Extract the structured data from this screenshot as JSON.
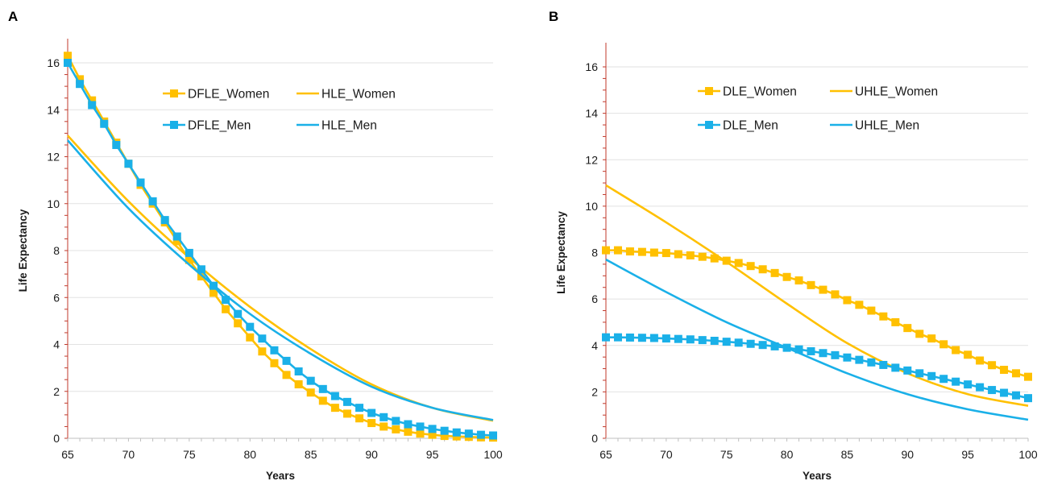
{
  "chart_data": [
    {
      "panel_label": "A",
      "type": "line",
      "xlabel": "Years",
      "ylabel": "Life Expectancy",
      "xlim": [
        65,
        100
      ],
      "ylim": [
        0,
        16
      ],
      "x_ticks": [
        "65",
        "70",
        "75",
        "80",
        "85",
        "90",
        "95",
        "100"
      ],
      "y_ticks": [
        "0",
        "2",
        "4",
        "6",
        "8",
        "10",
        "12",
        "14",
        "16"
      ],
      "grid": "horizontal",
      "legend_position": "top-center",
      "series": [
        {
          "name": "DFLE_Women",
          "color": "#ffc000",
          "marker": "square",
          "x": [
            65,
            66,
            67,
            68,
            69,
            70,
            71,
            72,
            73,
            74,
            75,
            76,
            77,
            78,
            79,
            80,
            81,
            82,
            83,
            84,
            85,
            86,
            87,
            88,
            89,
            90,
            91,
            92,
            93,
            94,
            95,
            96,
            97,
            98,
            99,
            100
          ],
          "y": [
            16.3,
            15.3,
            14.4,
            13.5,
            12.6,
            11.7,
            10.8,
            10.0,
            9.2,
            8.4,
            7.6,
            6.9,
            6.2,
            5.5,
            4.9,
            4.3,
            3.7,
            3.2,
            2.7,
            2.3,
            1.95,
            1.6,
            1.3,
            1.05,
            0.85,
            0.65,
            0.5,
            0.38,
            0.28,
            0.2,
            0.15,
            0.1,
            0.08,
            0.06,
            0.04,
            0.03
          ]
        },
        {
          "name": "HLE_Women",
          "color": "#ffc000",
          "marker": "none",
          "x": [
            65,
            70,
            75,
            80,
            85,
            90,
            95,
            100
          ],
          "y": [
            12.9,
            10.1,
            7.7,
            5.6,
            3.8,
            2.3,
            1.3,
            0.75
          ]
        },
        {
          "name": "DFLE_Men",
          "color": "#1ab0e8",
          "marker": "square",
          "x": [
            65,
            66,
            67,
            68,
            69,
            70,
            71,
            72,
            73,
            74,
            75,
            76,
            77,
            78,
            79,
            80,
            81,
            82,
            83,
            84,
            85,
            86,
            87,
            88,
            89,
            90,
            91,
            92,
            93,
            94,
            95,
            96,
            97,
            98,
            99,
            100
          ],
          "y": [
            16.0,
            15.1,
            14.2,
            13.4,
            12.5,
            11.7,
            10.9,
            10.1,
            9.3,
            8.6,
            7.9,
            7.2,
            6.5,
            5.9,
            5.3,
            4.75,
            4.25,
            3.75,
            3.3,
            2.85,
            2.45,
            2.1,
            1.8,
            1.55,
            1.3,
            1.08,
            0.9,
            0.74,
            0.6,
            0.5,
            0.4,
            0.32,
            0.25,
            0.2,
            0.15,
            0.12
          ]
        },
        {
          "name": "HLE_Men",
          "color": "#1ab0e8",
          "marker": "none",
          "x": [
            65,
            70,
            75,
            80,
            85,
            90,
            95,
            100
          ],
          "y": [
            12.7,
            9.8,
            7.4,
            5.3,
            3.6,
            2.2,
            1.3,
            0.78
          ]
        }
      ]
    },
    {
      "panel_label": "B",
      "type": "line",
      "xlabel": "Years",
      "ylabel": "Life Expectancy",
      "xlim": [
        65,
        100
      ],
      "ylim": [
        0,
        16
      ],
      "x_ticks": [
        "65",
        "70",
        "75",
        "80",
        "85",
        "90",
        "95",
        "100"
      ],
      "y_ticks": [
        "0",
        "2",
        "4",
        "6",
        "8",
        "10",
        "12",
        "14",
        "16"
      ],
      "grid": "horizontal",
      "legend_position": "top-center",
      "series": [
        {
          "name": "DLE_Women",
          "color": "#ffc000",
          "marker": "square",
          "x": [
            65,
            66,
            67,
            68,
            69,
            70,
            71,
            72,
            73,
            74,
            75,
            76,
            77,
            78,
            79,
            80,
            81,
            82,
            83,
            84,
            85,
            86,
            87,
            88,
            89,
            90,
            91,
            92,
            93,
            94,
            95,
            96,
            97,
            98,
            99,
            100
          ],
          "y": [
            8.1,
            8.1,
            8.05,
            8.03,
            8.0,
            7.98,
            7.93,
            7.88,
            7.82,
            7.75,
            7.65,
            7.55,
            7.42,
            7.28,
            7.12,
            6.95,
            6.8,
            6.6,
            6.4,
            6.2,
            5.95,
            5.75,
            5.5,
            5.25,
            5.0,
            4.75,
            4.5,
            4.3,
            4.05,
            3.8,
            3.6,
            3.35,
            3.15,
            2.95,
            2.8,
            2.65
          ]
        },
        {
          "name": "UHLE_Women",
          "color": "#ffc000",
          "marker": "none",
          "x": [
            65,
            70,
            75,
            80,
            85,
            90,
            95,
            100
          ],
          "y": [
            10.9,
            9.3,
            7.6,
            5.8,
            4.1,
            2.8,
            1.9,
            1.4
          ]
        },
        {
          "name": "DLE_Men",
          "color": "#1ab0e8",
          "marker": "square",
          "x": [
            65,
            66,
            67,
            68,
            69,
            70,
            71,
            72,
            73,
            74,
            75,
            76,
            77,
            78,
            79,
            80,
            81,
            82,
            83,
            84,
            85,
            86,
            87,
            88,
            89,
            90,
            91,
            92,
            93,
            94,
            95,
            96,
            97,
            98,
            99,
            100
          ],
          "y": [
            4.35,
            4.35,
            4.34,
            4.33,
            4.32,
            4.3,
            4.28,
            4.26,
            4.23,
            4.2,
            4.16,
            4.12,
            4.07,
            4.02,
            3.96,
            3.9,
            3.83,
            3.75,
            3.67,
            3.58,
            3.48,
            3.38,
            3.27,
            3.16,
            3.04,
            2.92,
            2.8,
            2.68,
            2.56,
            2.44,
            2.32,
            2.2,
            2.08,
            1.96,
            1.85,
            1.73
          ]
        },
        {
          "name": "UHLE_Men",
          "color": "#1ab0e8",
          "marker": "none",
          "x": [
            65,
            70,
            75,
            80,
            85,
            90,
            95,
            100
          ],
          "y": [
            7.7,
            6.3,
            5.0,
            3.9,
            2.8,
            1.9,
            1.25,
            0.8
          ]
        }
      ]
    }
  ]
}
